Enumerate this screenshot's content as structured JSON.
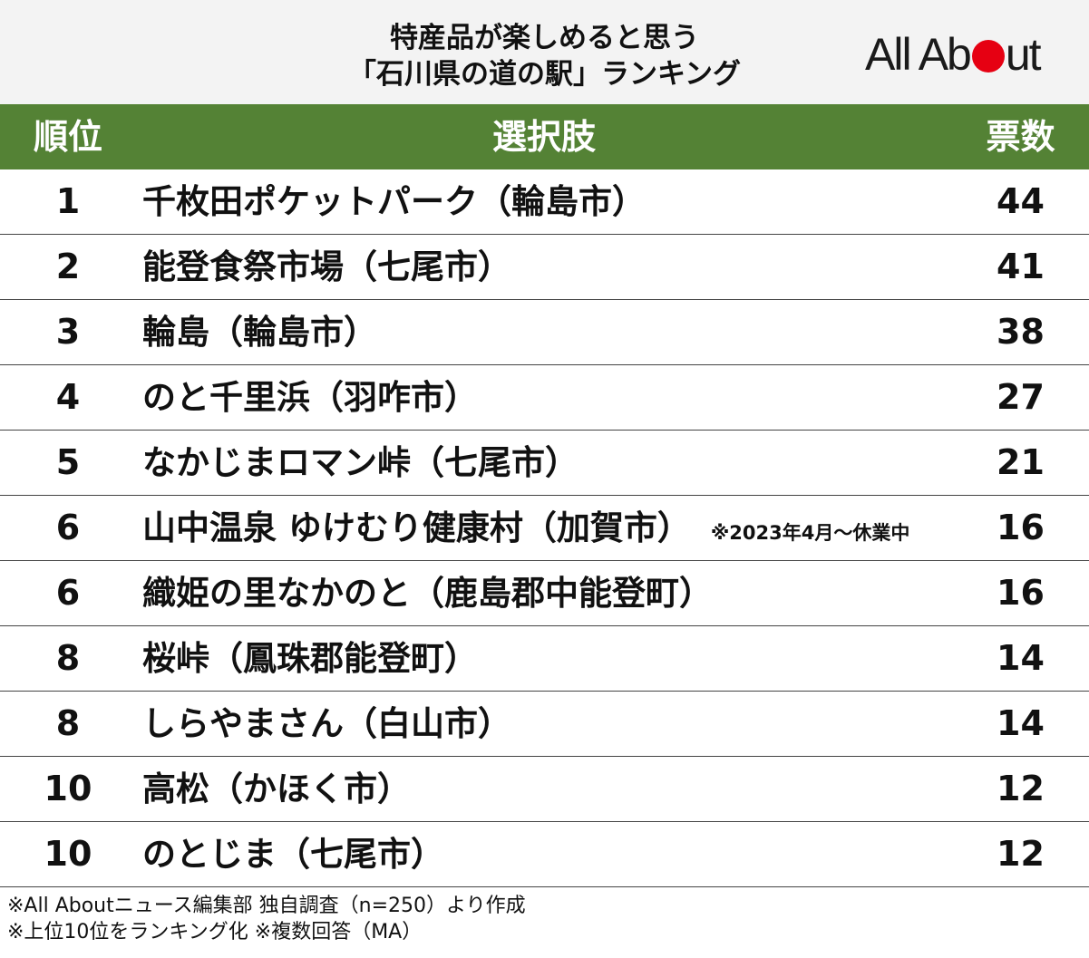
{
  "header": {
    "title_line1": "特産品が楽しめると思う",
    "title_line2": "「石川県の道の駅」ランキング",
    "logo_text_before": "All Ab",
    "logo_text_after": "ut",
    "logo_accent_color": "#e60012",
    "header_bg_color": "#f3f3f3"
  },
  "table": {
    "header_color": "#548235",
    "columns": {
      "rank": "順位",
      "choice": "選択肢",
      "votes": "票数"
    },
    "rows": [
      {
        "rank": "1",
        "choice": "千枚田ポケットパーク（輪島市）",
        "note": "",
        "votes": "44"
      },
      {
        "rank": "2",
        "choice": "能登食祭市場（七尾市）",
        "note": "",
        "votes": "41"
      },
      {
        "rank": "3",
        "choice": "輪島（輪島市）",
        "note": "",
        "votes": "38"
      },
      {
        "rank": "4",
        "choice": "のと千里浜（羽咋市）",
        "note": "",
        "votes": "27"
      },
      {
        "rank": "5",
        "choice": "なかじまロマン峠（七尾市）",
        "note": "",
        "votes": "21"
      },
      {
        "rank": "6",
        "choice": "山中温泉 ゆけむり健康村（加賀市）",
        "note": "※2023年4月～休業中",
        "votes": "16"
      },
      {
        "rank": "6",
        "choice": "織姫の里なかのと（鹿島郡中能登町）",
        "note": "",
        "votes": "16"
      },
      {
        "rank": "8",
        "choice": "桜峠（鳳珠郡能登町）",
        "note": "",
        "votes": "14"
      },
      {
        "rank": "8",
        "choice": "しらやまさん（白山市）",
        "note": "",
        "votes": "14"
      },
      {
        "rank": "10",
        "choice": "高松（かほく市）",
        "note": "",
        "votes": "12"
      },
      {
        "rank": "10",
        "choice": "のとじま（七尾市）",
        "note": "",
        "votes": "12"
      }
    ]
  },
  "footer": {
    "line1": "※All Aboutニュース編集部 独自調査（n=250）より作成",
    "line2": "※上位10位をランキング化 ※複数回答（MA）"
  }
}
